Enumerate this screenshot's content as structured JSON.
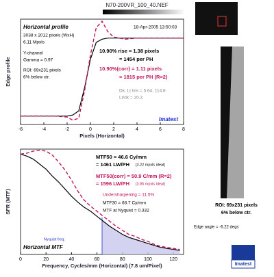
{
  "header": {
    "title": "N70-200VR_100_40.NEF"
  },
  "side": {
    "roi": "ROI: 69x231 pixels",
    "position": "6% below ctr.",
    "edge_angle": "Edge angle = -6.22 degs",
    "logo": "Imatest"
  },
  "chart_data": [
    {
      "type": "line",
      "ylabel": "Edge profile",
      "xlabel": "Pixels (Horizontal)",
      "xlim": [
        -6,
        8
      ],
      "xticks": [
        -6,
        -4,
        -2,
        0,
        2,
        4,
        6,
        8
      ],
      "ylim": [
        0,
        1
      ],
      "x": [
        -6,
        -5,
        -4,
        -3,
        -2,
        -1.5,
        -1,
        -0.5,
        0,
        0.5,
        1,
        1.5,
        2,
        3,
        4,
        5,
        6,
        7,
        8
      ],
      "series": [
        {
          "color": "#000000",
          "dash": false,
          "values": [
            0.08,
            0.08,
            0.08,
            0.08,
            0.08,
            0.09,
            0.13,
            0.35,
            0.62,
            0.78,
            0.81,
            0.82,
            0.82,
            0.82,
            0.82,
            0.82,
            0.82,
            0.82,
            0.82
          ]
        },
        {
          "color": "#c0145a",
          "dash": true,
          "values": [
            0.08,
            0.08,
            0.08,
            0.08,
            0.07,
            0.04,
            0.06,
            0.32,
            0.66,
            0.92,
            0.98,
            0.88,
            0.83,
            0.81,
            0.82,
            0.82,
            0.82,
            0.82,
            0.82
          ]
        }
      ],
      "annotations": [
        {
          "text": "Horizontal profile",
          "color": "#000000",
          "style": "title"
        },
        {
          "text": "18-Apr-2005 13:50:03",
          "color": "#000000",
          "style": "normal"
        },
        {
          "text": "3038 x 2012 pixels (WxH)",
          "color": "#000000",
          "style": "normal"
        },
        {
          "text": "6.11 Mpxls",
          "color": "#000000",
          "style": "normal"
        },
        {
          "text": "Y-channel",
          "color": "#000000",
          "style": "normal"
        },
        {
          "text": "Gamma = 0.97",
          "color": "#000000",
          "style": "normal"
        },
        {
          "text": "ROI: 69x231 pixels",
          "color": "#000000",
          "style": "normal"
        },
        {
          "text": "6% below ctr.",
          "color": "#000000",
          "style": "normal"
        },
        {
          "text": "10.90% rise = 1.38 pixels",
          "color": "#000000",
          "style": "bold"
        },
        {
          "text": "= 1454 per PH",
          "color": "#000000",
          "style": "bold"
        },
        {
          "text": "10.90%(corr) = 1.11 pixels",
          "color": "#c0145a",
          "style": "bold"
        },
        {
          "text": "= 1815 per PH (R=2)",
          "color": "#c0145a",
          "style": "bold"
        },
        {
          "text": "Dk, Lt lvls = 5.64, 114.6",
          "color": "#888888",
          "style": "normal"
        },
        {
          "text": "Lt/dk = 20.3",
          "color": "#888888",
          "style": "normal"
        },
        {
          "text": "Imatest",
          "color": "#1a2ecc",
          "style": "title"
        }
      ]
    },
    {
      "type": "line",
      "ylabel": "SFR (MTF)",
      "xlabel": "Frequency, Cycles/mm (Horizontal)  (7.8 um/Pixel)",
      "xlim": [
        0,
        128
      ],
      "xticks": [
        0,
        20,
        40,
        60,
        80,
        100,
        120
      ],
      "ylim": [
        0,
        1.05
      ],
      "nyquist": 64,
      "x": [
        0,
        5,
        10,
        15,
        20,
        25,
        30,
        35,
        40,
        45,
        50,
        55,
        60,
        65,
        70,
        75,
        80,
        85,
        90,
        95,
        100,
        105,
        110,
        115,
        120,
        125
      ],
      "series": [
        {
          "color": "#000000",
          "dash": false,
          "values": [
            1.0,
            0.98,
            0.95,
            0.9,
            0.85,
            0.78,
            0.72,
            0.65,
            0.58,
            0.52,
            0.47,
            0.43,
            0.38,
            0.33,
            0.28,
            0.24,
            0.2,
            0.17,
            0.15,
            0.13,
            0.11,
            0.09,
            0.07,
            0.06,
            0.05,
            0.04
          ]
        },
        {
          "color": "#c0145a",
          "dash": true,
          "values": [
            1.0,
            1.01,
            1.03,
            1.04,
            1.03,
            0.99,
            0.92,
            0.84,
            0.74,
            0.63,
            0.54,
            0.48,
            0.43,
            0.38,
            0.33,
            0.28,
            0.24,
            0.2,
            0.18,
            0.15,
            0.13,
            0.1,
            0.08,
            0.07,
            0.06,
            0.05
          ]
        }
      ],
      "annotations": [
        {
          "text": "MTF50 = 46.6 Cy/mm",
          "color": "#000000",
          "style": "bold"
        },
        {
          "text": "= 1461 LW/PH",
          "color": "#000000",
          "style": "bold"
        },
        {
          "text": "[3.22 mpxls ideal]",
          "color": "#000000",
          "style": "small"
        },
        {
          "text": "MTF50(corr) = 50.9 C/mm (R=2)",
          "color": "#c0145a",
          "style": "bold"
        },
        {
          "text": "= 1596 LW/PH",
          "color": "#c0145a",
          "style": "bold"
        },
        {
          "text": "[3.85 mpxls ideal]",
          "color": "#c0145a",
          "style": "small"
        },
        {
          "text": "Undersharpening = 11.5%",
          "color": "#c0145a",
          "style": "normal"
        },
        {
          "text": "MTF30 = 68.7 Cy/mm",
          "color": "#000000",
          "style": "normal"
        },
        {
          "text": "MTF at Nyquist = 0.332",
          "color": "#000000",
          "style": "normal"
        },
        {
          "text": "Nyquist freq.",
          "color": "#1a2ecc",
          "style": "small"
        },
        {
          "text": "Horizontal MTF",
          "color": "#000000",
          "style": "title"
        }
      ]
    }
  ]
}
